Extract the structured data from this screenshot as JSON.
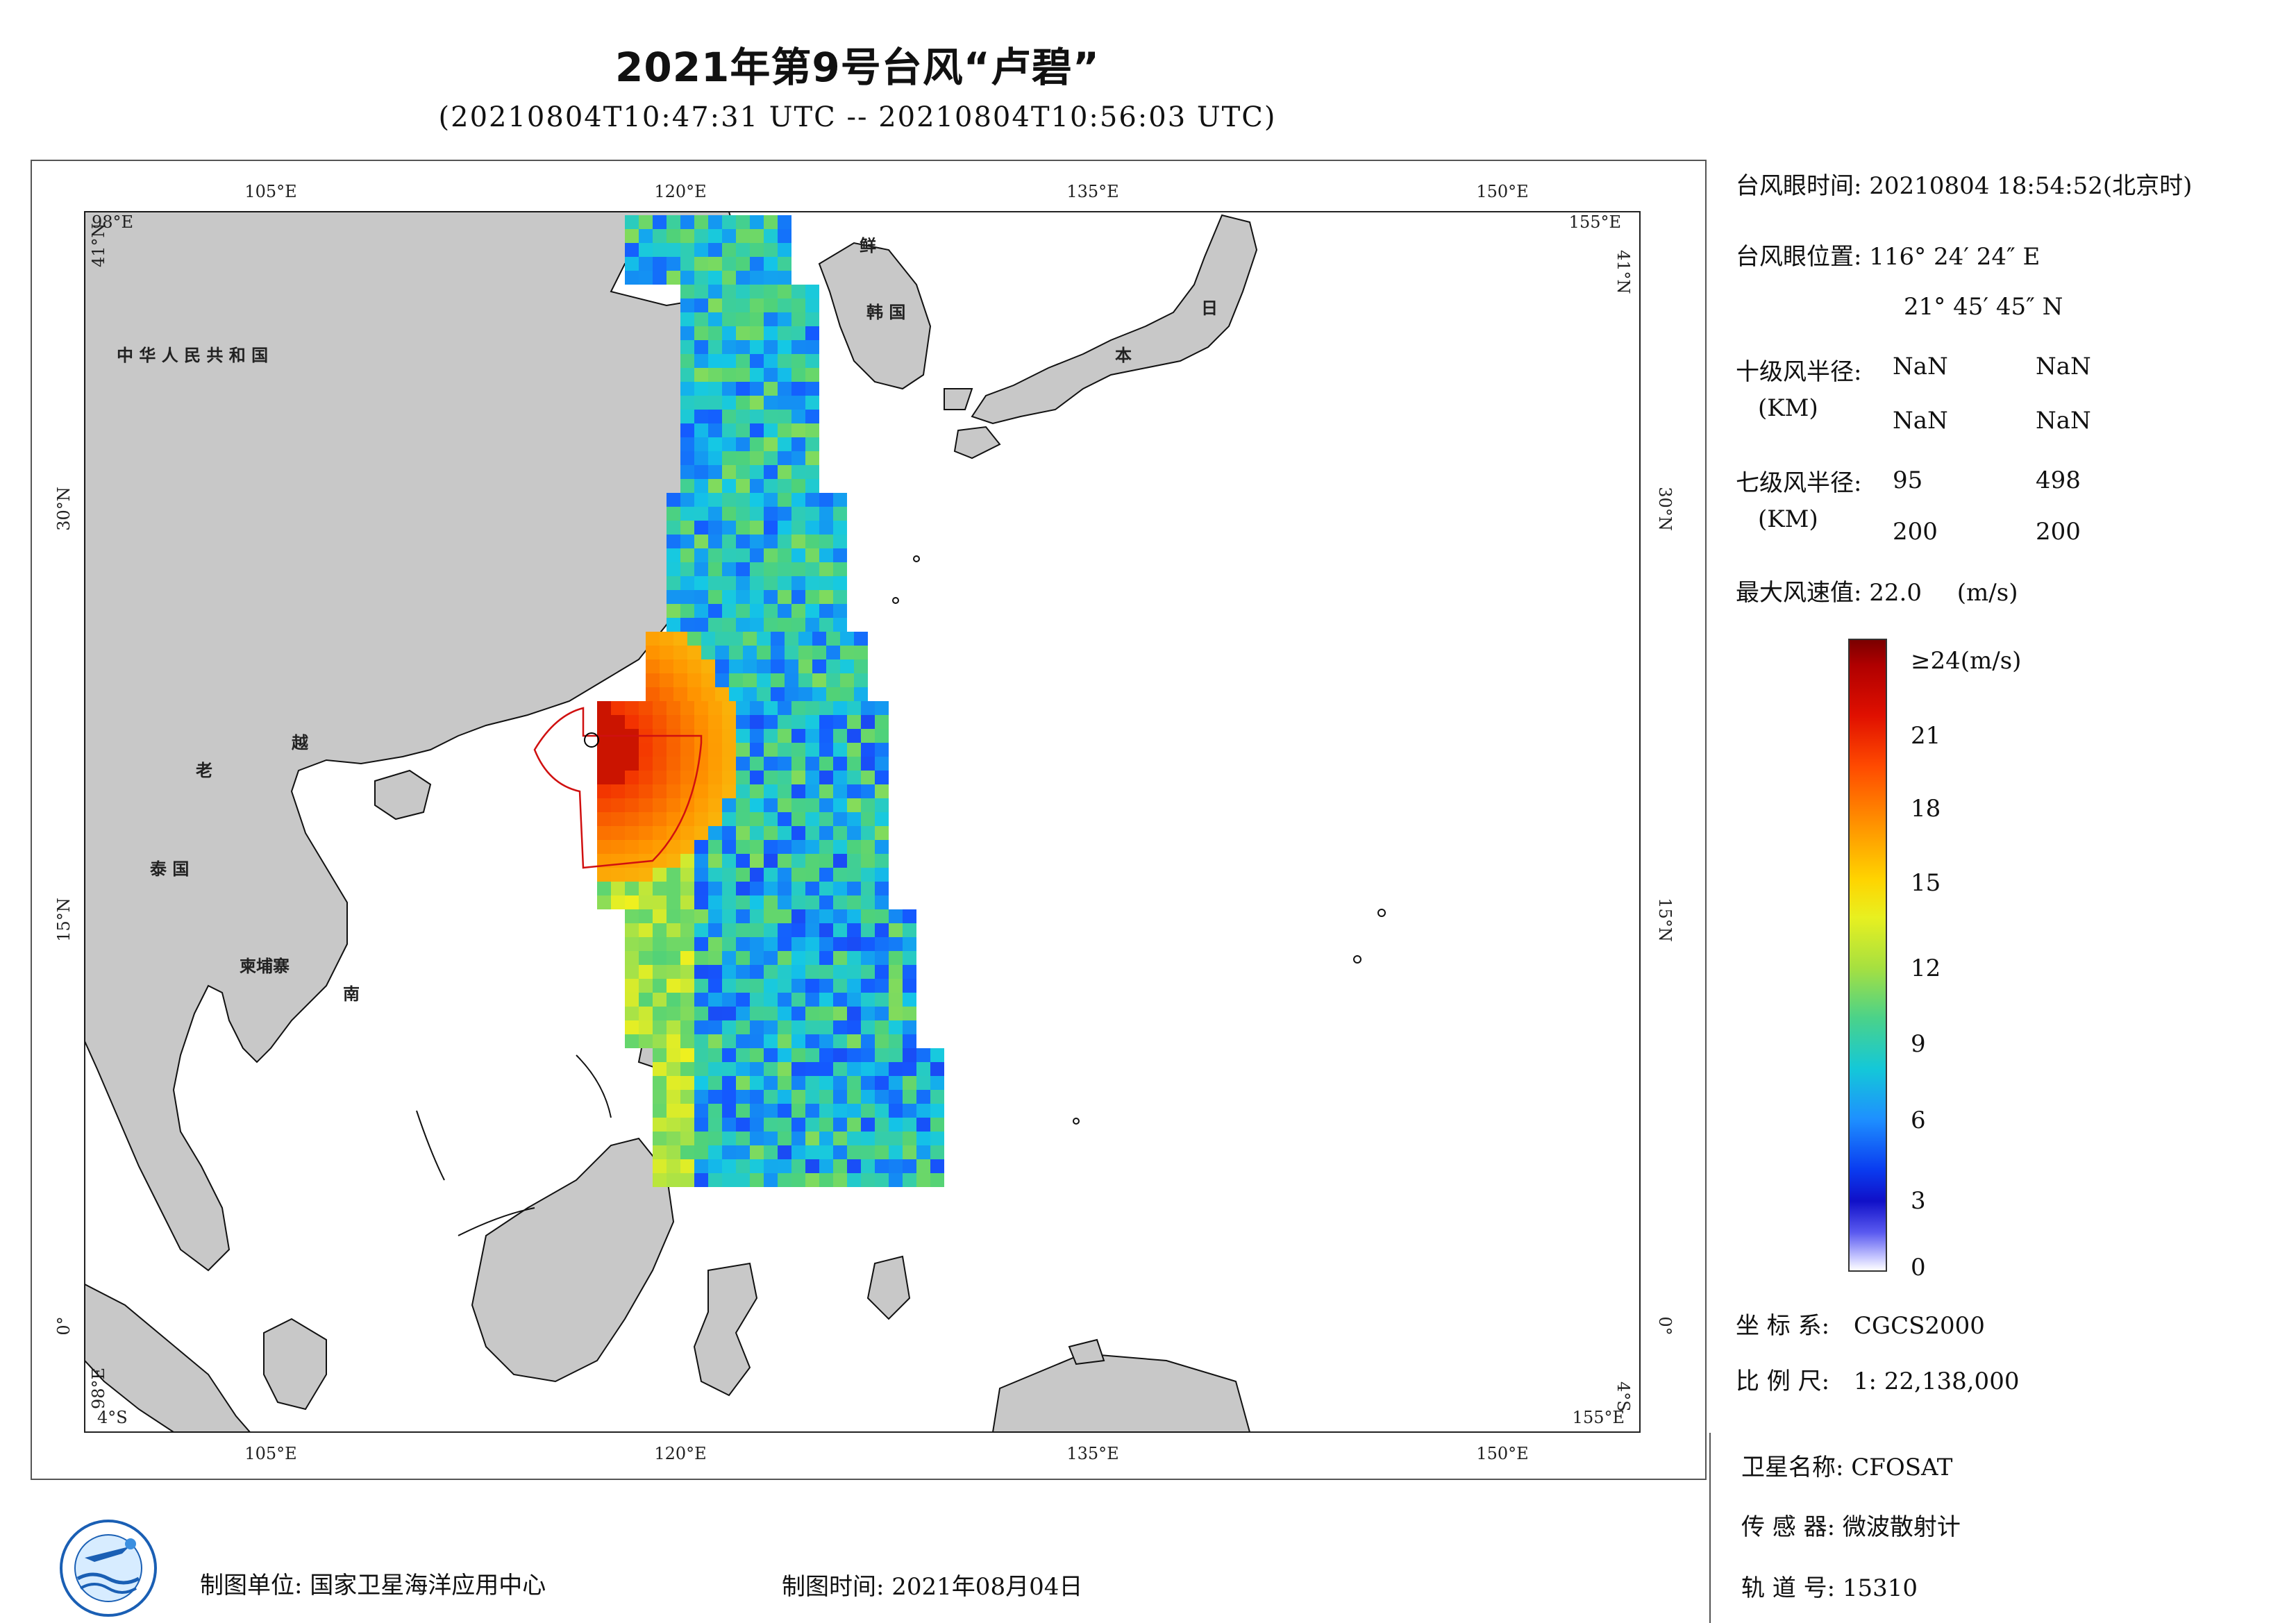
{
  "title": "2021年第9号台风“卢碧”",
  "subtitle": "(20210804T10:47:31 UTC -- 20210804T10:56:03 UTC)",
  "map": {
    "lon_ticks": [
      "105°E",
      "120°E",
      "135°E",
      "150°E"
    ],
    "lat_ticks": [
      "30°N",
      "15°N",
      "0°"
    ],
    "corner_labels": {
      "top_left_lon": "98°E",
      "top_left_lat": "41°N",
      "top_right_lon": "155°E",
      "top_right_lat": "41°N",
      "bottom_left_lon": "98°E",
      "bottom_left_lat": "4°S",
      "bottom_right_lon": "155°E",
      "bottom_right_lat": "4°S"
    },
    "country_labels": [
      "中 华 人 民 共 和 国",
      "老",
      "越",
      "泰 国",
      "柬埔寨",
      "南",
      "鲜",
      "韩 国",
      "日",
      "本"
    ],
    "colors": {
      "land": "#c8c8c8",
      "ocean": "#ffffff",
      "coast": "#111111",
      "track_circle": "#d01010"
    }
  },
  "info": {
    "eye_time_label": "台风眼时间:",
    "eye_time_value": "20210804 18:54:52(北京时)",
    "eye_pos_label": "台风眼位置:",
    "eye_pos_lon": "116° 24′ 24″ E",
    "eye_pos_lat": "21° 45′ 45″ N",
    "r10_label": "十级风半径:",
    "r10_unit": "(KM)",
    "r10_values": [
      "NaN",
      "NaN",
      "NaN",
      "NaN"
    ],
    "r7_label": "七级风半径:",
    "r7_unit": "(KM)",
    "r7_values": [
      "95",
      "498",
      "200",
      "200"
    ],
    "max_wind_label": "最大风速值:",
    "max_wind_value": "22.0",
    "max_wind_unit": "(m/s)"
  },
  "colorbar": {
    "top_label": "≥24(m/s)",
    "ticks": [
      "21",
      "18",
      "15",
      "12",
      "9",
      "6",
      "3",
      "0"
    ]
  },
  "meta": {
    "crs_label": "坐 标 系:",
    "crs_value": "CGCS2000",
    "scale_label": "比 例 尺:",
    "scale_value": "1: 22,138,000",
    "satellite_label": "卫星名称:",
    "satellite_value": "CFOSAT",
    "sensor_label": "传 感 器:",
    "sensor_value": "微波散射计",
    "orbit_label": "轨 道 号:",
    "orbit_value": "15310",
    "maker_label": "制图单位:",
    "maker_value": "国家卫星海洋应用中心",
    "date_label": "制图时间:",
    "date_value": "2021年08月04日"
  }
}
